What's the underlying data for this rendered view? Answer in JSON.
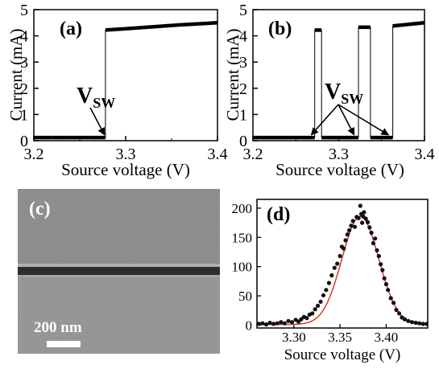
{
  "chart_data": [
    {
      "type": "line",
      "panel_label": "(a)",
      "xlabel": "Source voltage (V)",
      "ylabel": "Current (mA)",
      "xlim": [
        3.2,
        3.4
      ],
      "ylim": [
        0,
        5
      ],
      "xticks": [
        "3.2",
        "3.3",
        "3.4"
      ],
      "yticks": [
        "0",
        "1",
        "2",
        "3",
        "4",
        "5"
      ],
      "annotation": {
        "main": "V",
        "sub": "SW"
      },
      "series": [
        {
          "x": [
            3.2,
            3.22,
            3.24,
            3.26,
            3.275,
            3.278,
            3.278,
            3.3,
            3.32,
            3.34,
            3.36,
            3.38,
            3.4
          ],
          "y": [
            0.12,
            0.12,
            0.12,
            0.12,
            0.12,
            0.12,
            4.22,
            4.27,
            4.32,
            4.37,
            4.42,
            4.46,
            4.5
          ]
        }
      ],
      "arrow_targets_x": [
        3.277
      ]
    },
    {
      "type": "line",
      "panel_label": "(b)",
      "xlabel": "Source voltage (V)",
      "ylabel": "Current (mA)",
      "xlim": [
        3.2,
        3.4
      ],
      "ylim": [
        0,
        5
      ],
      "xticks": [
        "3.2",
        "3.3",
        "3.4"
      ],
      "yticks": [
        "0",
        "1",
        "2",
        "3",
        "4",
        "5"
      ],
      "annotation": {
        "main": "V",
        "sub": "SW"
      },
      "series": [
        {
          "x": [
            3.2,
            3.272,
            3.272,
            3.28
          ],
          "y": [
            0.12,
            0.12,
            4.22,
            4.22
          ]
        },
        {
          "x": [
            3.28,
            3.28,
            3.323,
            3.323,
            3.337
          ],
          "y": [
            4.22,
            0.12,
            0.12,
            4.33,
            4.33
          ]
        },
        {
          "x": [
            3.337,
            3.337,
            3.363,
            3.363,
            3.4
          ],
          "y": [
            4.33,
            0.12,
            0.12,
            4.38,
            4.5
          ]
        }
      ],
      "arrow_targets_x": [
        3.268,
        3.318,
        3.358
      ]
    },
    {
      "type": "scatter",
      "panel_label": "(d)",
      "xlabel": "Source voltage (V)",
      "ylabel": "",
      "xlim": [
        3.26,
        3.445
      ],
      "ylim": [
        -5,
        215
      ],
      "xticks": [
        "3.30",
        "3.35",
        "3.40"
      ],
      "yticks": [
        "0",
        "50",
        "100",
        "150",
        "200"
      ],
      "fit": {
        "type": "gaussian",
        "center": 3.372,
        "sigma": 0.02,
        "amplitude": 185,
        "color": "#d63b2a"
      },
      "points": [
        [
          3.262,
          2
        ],
        [
          3.266,
          3
        ],
        [
          3.27,
          1
        ],
        [
          3.274,
          4
        ],
        [
          3.278,
          2
        ],
        [
          3.282,
          3
        ],
        [
          3.286,
          5
        ],
        [
          3.29,
          3
        ],
        [
          3.294,
          7
        ],
        [
          3.298,
          5
        ],
        [
          3.302,
          9
        ],
        [
          3.305,
          6
        ],
        [
          3.308,
          10
        ],
        [
          3.311,
          14
        ],
        [
          3.314,
          12
        ],
        [
          3.317,
          18
        ],
        [
          3.32,
          20
        ],
        [
          3.323,
          27
        ],
        [
          3.326,
          33
        ],
        [
          3.329,
          40
        ],
        [
          3.332,
          51
        ],
        [
          3.335,
          60
        ],
        [
          3.338,
          72
        ],
        [
          3.341,
          85
        ],
        [
          3.344,
          98
        ],
        [
          3.347,
          105
        ],
        [
          3.35,
          118
        ],
        [
          3.352,
          134
        ],
        [
          3.354,
          131
        ],
        [
          3.356,
          145
        ],
        [
          3.358,
          155
        ],
        [
          3.36,
          162
        ],
        [
          3.362,
          170
        ],
        [
          3.364,
          178
        ],
        [
          3.366,
          168
        ],
        [
          3.368,
          185
        ],
        [
          3.37,
          183
        ],
        [
          3.372,
          204
        ],
        [
          3.373,
          190
        ],
        [
          3.374,
          175
        ],
        [
          3.375,
          186
        ],
        [
          3.376,
          193
        ],
        [
          3.378,
          182
        ],
        [
          3.38,
          176
        ],
        [
          3.382,
          167
        ],
        [
          3.384,
          158
        ],
        [
          3.386,
          140
        ],
        [
          3.388,
          148
        ],
        [
          3.39,
          128
        ],
        [
          3.392,
          118
        ],
        [
          3.394,
          104
        ],
        [
          3.396,
          94
        ],
        [
          3.398,
          80
        ],
        [
          3.4,
          70
        ],
        [
          3.402,
          60
        ],
        [
          3.405,
          46
        ],
        [
          3.408,
          38
        ],
        [
          3.411,
          26
        ],
        [
          3.414,
          20
        ],
        [
          3.417,
          13
        ],
        [
          3.42,
          10
        ],
        [
          3.424,
          7
        ],
        [
          3.428,
          5
        ],
        [
          3.432,
          4
        ],
        [
          3.436,
          3
        ],
        [
          3.44,
          2
        ],
        [
          3.444,
          2
        ]
      ]
    }
  ],
  "sem_image": {
    "panel_label": "(c)",
    "scale_bar_label": "200 nm",
    "background_color": "#8e8e8e",
    "trench_color": "#2d2d2d"
  }
}
